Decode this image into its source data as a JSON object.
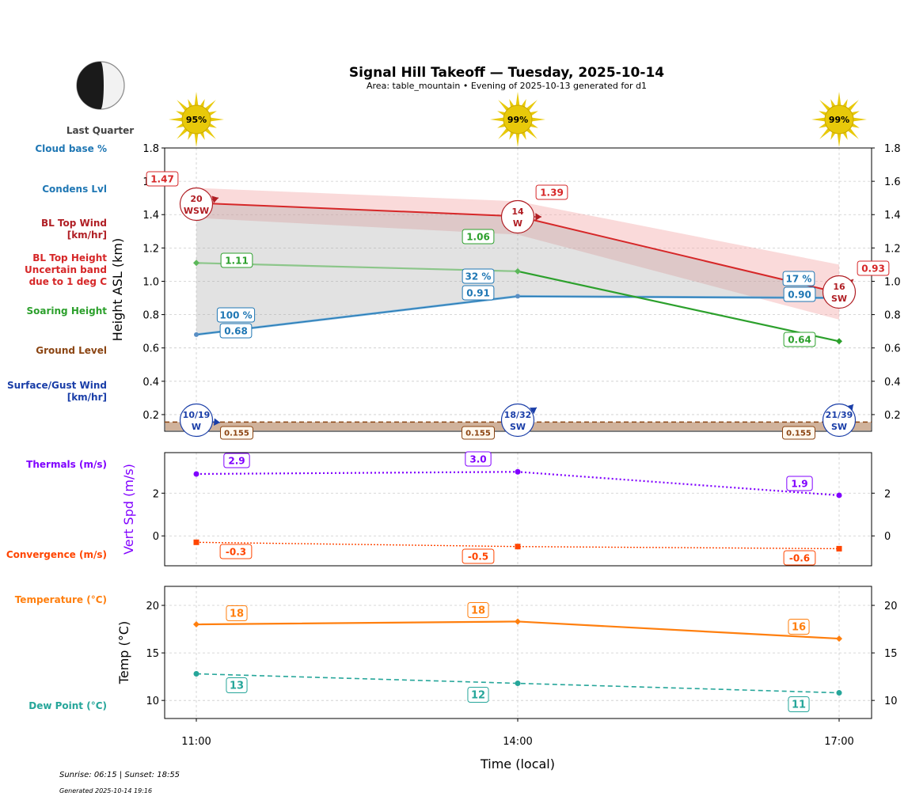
{
  "title": "Signal Hill Takeoff — Tuesday, 2025-10-14",
  "subtitle": "Area: table_mountain • Evening of 2025-10-13 generated for d1",
  "moon": {
    "phase_label": "Last Quarter",
    "icon": "moon-last-quarter-icon"
  },
  "footer": {
    "sun_times": "Sunrise: 06:15 | Sunset: 18:55",
    "generated": "Generated 2025-10-14 19:16"
  },
  "colors": {
    "cloud": "#1f77b4",
    "bl_top": "#d62728",
    "soaring": "#2ca02c",
    "ground": "#8b4513",
    "surface_wind": "#1a3ea8",
    "thermal": "#8000ff",
    "convergence": "#ff4500",
    "temperature": "#ff7f0e",
    "dewpoint": "#26a69a",
    "sun": "#e8c90a"
  },
  "chart_data": [
    {
      "type": "line",
      "name": "main",
      "x": [
        "11:00",
        "14:00",
        "17:00"
      ],
      "ylabel": "Height ASL (km)",
      "ylim": [
        0.1,
        1.8
      ],
      "yticks": [
        "0.2",
        "0.4",
        "0.6",
        "0.8",
        "1.0",
        "1.2",
        "1.4",
        "1.6",
        "1.8"
      ],
      "grid": true,
      "sun_percent": [
        "95%",
        "99%",
        "99%"
      ],
      "row_labels": {
        "cloud_base": "Cloud base %",
        "condens": "Condens Lvl",
        "bl_wind": [
          "BL Top Wind",
          "[km/hr]"
        ],
        "bl_height": [
          "BL Top Height",
          "Uncertain band",
          "due to 1 deg C"
        ],
        "soaring": "Soaring Height",
        "ground": "Ground Level",
        "surface_wind": [
          "Surface/Gust Wind",
          "[km/hr]"
        ]
      },
      "bl_top": {
        "values": [
          1.47,
          1.39,
          0.93
        ],
        "labels": [
          "1.47",
          "1.39",
          "0.93"
        ],
        "band_low": [
          1.38,
          1.28,
          0.77
        ],
        "band_high": [
          1.56,
          1.48,
          1.1
        ]
      },
      "soaring": {
        "values": [
          1.11,
          1.06,
          0.64
        ],
        "labels": [
          "1.11",
          "1.06",
          "0.64"
        ]
      },
      "condens": {
        "values": [
          0.68,
          0.91,
          0.9
        ],
        "labels": [
          "0.68",
          "0.91",
          "0.90"
        ]
      },
      "cloud_base": {
        "labels": [
          "100 %",
          "32 %",
          "17 %"
        ]
      },
      "ground": {
        "values": [
          0.155,
          0.155,
          0.155
        ],
        "labels": [
          "0.155",
          "0.155",
          "0.155"
        ]
      },
      "bl_wind": {
        "speed": [
          "20",
          "14",
          "16"
        ],
        "dir": [
          "WSW",
          "W",
          "SW"
        ]
      },
      "surface_wind": {
        "speed": [
          "10/19",
          "18/32",
          "21/39"
        ],
        "dir": [
          "W",
          "SW",
          "SW"
        ]
      }
    },
    {
      "type": "line",
      "name": "vertical-speed",
      "x": [
        "11:00",
        "14:00",
        "17:00"
      ],
      "ylabel": "Vert Spd (m/s)",
      "ylim": [
        -1.4,
        3.9
      ],
      "yticks": [
        "0",
        "2"
      ],
      "row_labels": {
        "thermals": "Thermals (m/s)",
        "convergence": "Convergence (m/s)"
      },
      "thermals": {
        "values": [
          2.9,
          3.0,
          1.9
        ],
        "labels": [
          "2.9",
          "3.0",
          "1.9"
        ]
      },
      "convergence": {
        "values": [
          -0.3,
          -0.5,
          -0.6
        ],
        "labels": [
          "-0.3",
          "-0.5",
          "-0.6"
        ]
      }
    },
    {
      "type": "line",
      "name": "temperature",
      "x": [
        "11:00",
        "14:00",
        "17:00"
      ],
      "xlabel": "Time (local)",
      "xticks": [
        "11:00",
        "14:00",
        "17:00"
      ],
      "ylabel": "Temp (°C)",
      "ylim": [
        8.1,
        22
      ],
      "yticks": [
        "10",
        "15",
        "20"
      ],
      "row_labels": {
        "temperature": "Temperature (°C)",
        "dewpoint": "Dew Point (°C)"
      },
      "temperature": {
        "values": [
          18,
          18.3,
          16.5
        ],
        "labels": [
          "18",
          "18",
          "16"
        ]
      },
      "dewpoint": {
        "values": [
          12.8,
          11.8,
          10.8
        ],
        "labels": [
          "13",
          "12",
          "11"
        ]
      }
    }
  ]
}
